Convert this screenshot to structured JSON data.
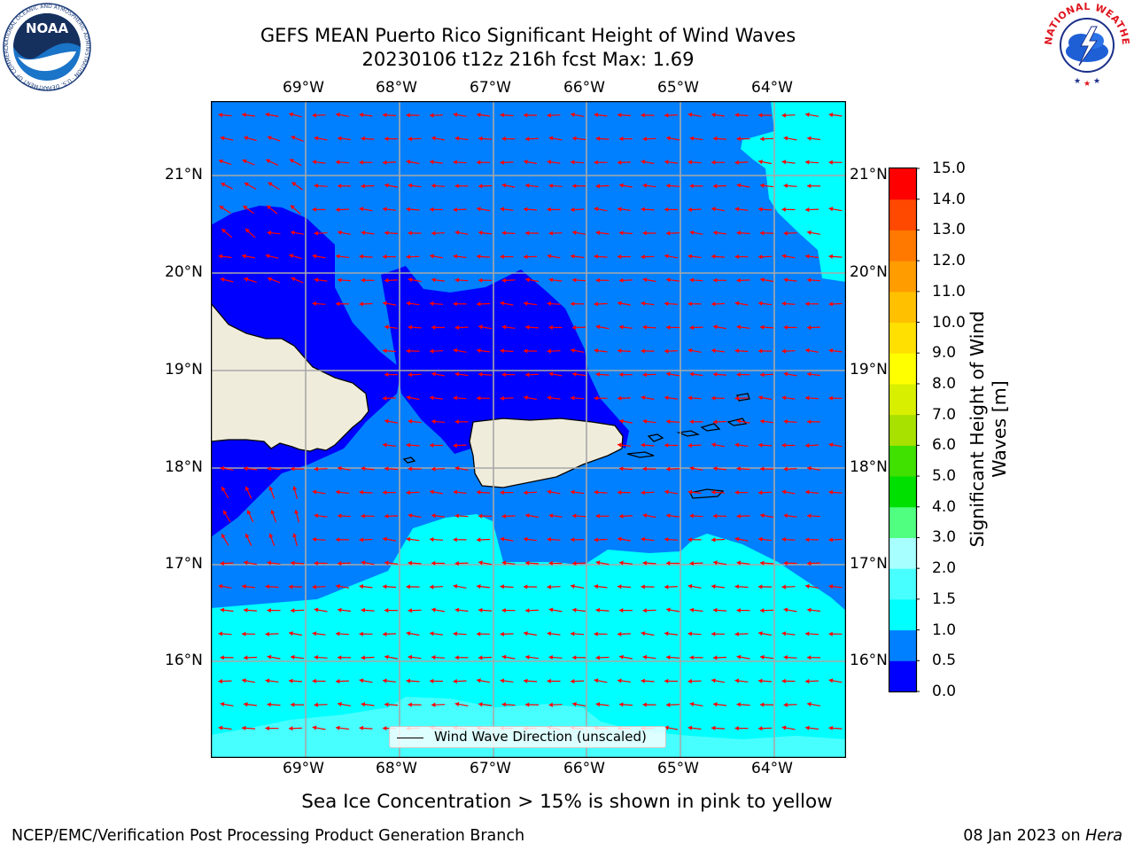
{
  "title_line1": "GEFS MEAN Puerto Rico Significant Height of Wind Waves",
  "title_line2": "20230106 t12z 216h fcst   Max: 1.69",
  "axes": {
    "lon_labels": [
      "69°W",
      "68°W",
      "67°W",
      "66°W",
      "65°W",
      "64°W"
    ],
    "lat_labels": [
      "21°N",
      "20°N",
      "19°N",
      "18°N",
      "17°N",
      "16°N"
    ]
  },
  "colorbar": {
    "title": "Significant Height of Wind Waves [m]",
    "ticks": [
      "0.0",
      "0.5",
      "1.0",
      "1.5",
      "2.0",
      "3.0",
      "4.0",
      "5.0",
      "6.0",
      "7.0",
      "8.0",
      "9.0",
      "10.0",
      "11.0",
      "12.0",
      "13.0",
      "14.0",
      "15.0"
    ],
    "colors": [
      "#0000ff",
      "#0080ff",
      "#00ffff",
      "#48ffff",
      "#a8ffff",
      "#50ff80",
      "#00e000",
      "#40e000",
      "#a8e000",
      "#d8f000",
      "#ffff00",
      "#ffe000",
      "#ffc000",
      "#ff9c00",
      "#ff7800",
      "#ff4800",
      "#ff0000"
    ]
  },
  "map_colors": {
    "band_0_0.5": "#0000ff",
    "band_0.5_1.0": "#0080ff",
    "band_1.0_1.5": "#00ffff",
    "band_1.5_2.0": "#48ffff",
    "land": "#f0ecdc",
    "arrows": "#ff0000"
  },
  "legend": {
    "label": "Wind Wave Direction (unscaled)"
  },
  "sea_ice_note": "Sea Ice Concentration > 15% is shown in pink to yellow",
  "footer": {
    "left": "NCEP/EMC/Verification Post Processing Product Generation Branch",
    "date": "08 Jan 2023 on ",
    "machine": "Hera"
  },
  "logos": {
    "left_text": "NOAA",
    "left_ring_text": "NATIONAL OCEANIC AND ATMOSPHERIC ADMINISTRATION · U.S. DEPARTMENT OF COMMERCE",
    "right_ring_text": "NATIONAL WEATHER SERVICE"
  }
}
